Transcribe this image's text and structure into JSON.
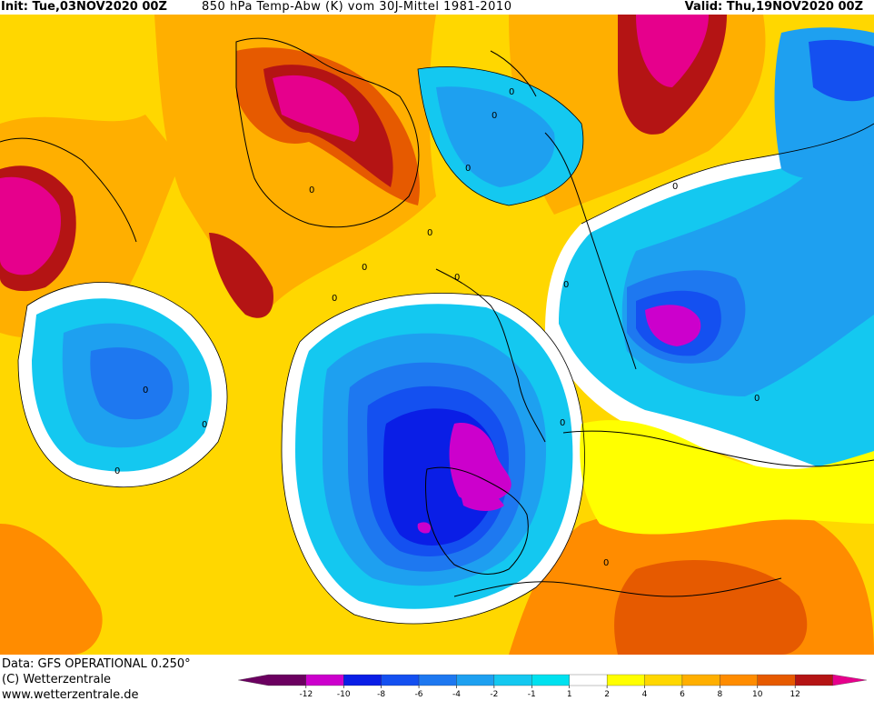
{
  "header": {
    "init": "Init: Tue,03NOV2020 00Z",
    "title": "850 hPa Temp-Abw (K) vom 30J-Mittel 1981-2010",
    "valid": "Valid: Thu,19NOV2020 00Z"
  },
  "footer": {
    "line1": "Data: GFS OPERATIONAL 0.250°",
    "line2": "(C) Wetterzentrale",
    "line3": "www.wetterzentrale.de"
  },
  "legend": {
    "colors": [
      "#6b0060",
      "#cc00cc",
      "#0a1ee6",
      "#1450f0",
      "#1e78f0",
      "#1ea0f0",
      "#14c8f0",
      "#00e1ef",
      "#ffffff",
      "#ffff00",
      "#ffd700",
      "#ffaf00",
      "#ff8c00",
      "#e65a00",
      "#b41414",
      "#e6008c"
    ],
    "ticks": [
      "-12",
      "-10",
      "-8",
      "-6",
      "-4",
      "-2",
      "-1",
      "1",
      "2",
      "4",
      "6",
      "8",
      "10",
      "12"
    ]
  },
  "map_labels": [
    "0",
    "0",
    "0",
    "0",
    "0",
    "0",
    "0",
    "0",
    "0",
    "0",
    "0",
    "0",
    "0",
    "0",
    "0",
    "0"
  ]
}
